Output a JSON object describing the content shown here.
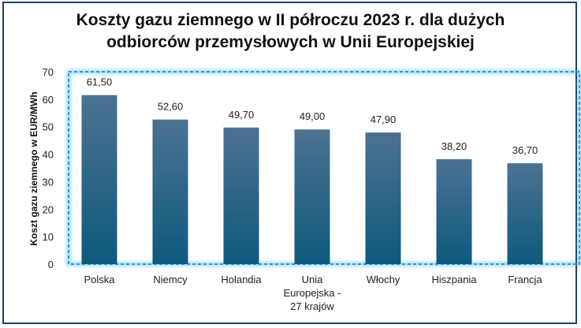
{
  "chart_data": {
    "type": "bar",
    "title_lines": [
      "Koszty gazu ziemnego w II półroczu 2023 r. dla dużych",
      "odbiorców przemysłowych w Unii Europejskiej"
    ],
    "ylabel": "Koszt gazu ziemnego w EUR/MWh",
    "xlabel": "",
    "ylim": [
      0,
      70
    ],
    "yticks": [
      0,
      10,
      20,
      30,
      40,
      50,
      60,
      70
    ],
    "categories": [
      [
        "Polska"
      ],
      [
        "Niemcy"
      ],
      [
        "Holandia"
      ],
      [
        "Unia",
        "Europejska -",
        "27 krajów"
      ],
      [
        "Włochy"
      ],
      [
        "Hiszpania"
      ],
      [
        "Francja"
      ]
    ],
    "values": [
      61.5,
      52.6,
      49.7,
      49.0,
      47.9,
      38.2,
      36.7
    ],
    "data_labels": [
      "61,50",
      "52,60",
      "49,70",
      "49,00",
      "47,90",
      "38,20",
      "36,70"
    ],
    "colors": {
      "bar_top": "#4c7191",
      "bar_bottom": "#0e5a7e",
      "highlight": "#1ea1dc",
      "frame": "#1f3f6a"
    }
  }
}
